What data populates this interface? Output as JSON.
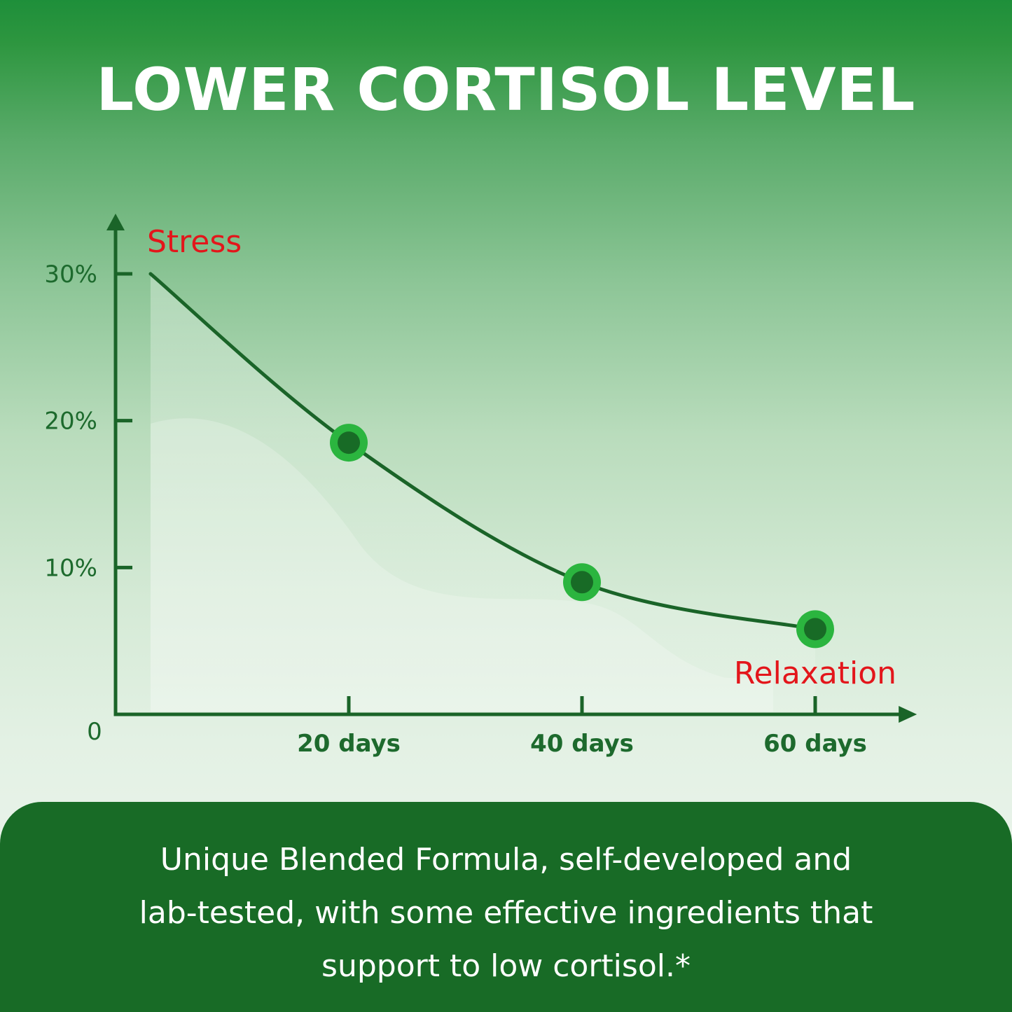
{
  "title": "LOWER CORTISOL LEVEL",
  "chart_data": {
    "type": "line",
    "title": "LOWER CORTISOL LEVEL",
    "xlabel": "",
    "ylabel": "",
    "origin_label": "0",
    "x": [
      3,
      20,
      40,
      60
    ],
    "values": [
      30,
      18.5,
      9,
      5.8
    ],
    "marked_points": [
      20,
      40,
      60
    ],
    "xlim": [
      0,
      68
    ],
    "ylim": [
      0,
      30
    ],
    "xticks": [
      {
        "value": 20,
        "label": "20 days"
      },
      {
        "value": 40,
        "label": "40 days"
      },
      {
        "value": 60,
        "label": "60 days"
      }
    ],
    "yticks": [
      {
        "value": 30,
        "label": "30%"
      },
      {
        "value": 20,
        "label": "20%"
      },
      {
        "value": 10,
        "label": "10%"
      }
    ],
    "annotations": [
      {
        "text": "Stress",
        "anchor": "start-of-line"
      },
      {
        "text": "Relaxation",
        "anchor": "end-of-line"
      }
    ],
    "grid": false,
    "colors": {
      "line": "#1a6428",
      "axis": "#1a6428",
      "marker_outer": "#2bb53f",
      "marker_inner": "#186b26",
      "annotation": "#e3161b"
    }
  },
  "footer": {
    "line1": "Unique Blended Formula, self-developed and",
    "line2": "lab-tested, with some effective ingredients that",
    "line3": "support to low cortisol.*"
  }
}
